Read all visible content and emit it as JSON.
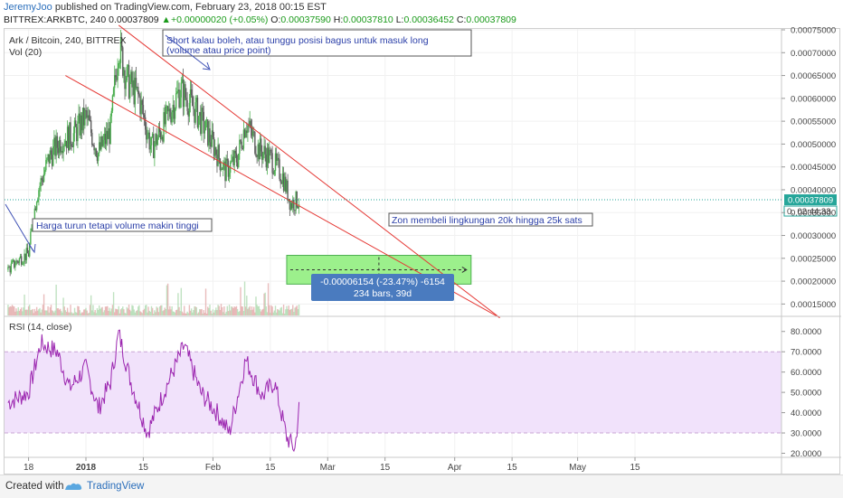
{
  "header": {
    "author": "JeremyJoo",
    "published_text": "published on TradingView.com, February 23, 2018 00:15 EST",
    "symbol": "BITTREX:ARKBTC, 240",
    "last": "0.00037809",
    "change": "+0.00000020 (+0.05%)",
    "o_label": "O:",
    "o": "0.00037590",
    "h_label": "H:",
    "h": "0.00037810",
    "l_label": "L:",
    "l": "0.00036452",
    "c_label": "C:",
    "c": "0.00037809"
  },
  "legend": {
    "title": "Ark / Bitcoin, 240, BITTREX",
    "vol": "Vol (20)",
    "rsi": "RSI (14, close)"
  },
  "annotations": {
    "note_top": "Short kalau boleh, atau tunggu posisi bagus untuk masuk long (volume atau price point)",
    "note_left": "Harga turun tetapi volume makin tinggi",
    "note_right": "Zon membeli lingkungan 20k hingga 25k sats",
    "measure_line1": "-0.00006154 (-23.47%) -6154",
    "measure_line2": "234 bars, 39d"
  },
  "price_tags": {
    "last_price": "0.00037809",
    "countdown": "02:44:33",
    "partial": "0."
  },
  "colors": {
    "candle_up": "#4caf50",
    "candle_down": "#5d5d5d",
    "trendline": "#e53935",
    "rsi_line": "#9c27b0",
    "rsi_band": "#f1e2fb",
    "last_price_tag": "#26a69a",
    "measure_box": "#4a7bbf",
    "buy_zone": "#9cf08c"
  },
  "footer": {
    "created_with": "Created with",
    "brand": "TradingView"
  },
  "chart_data": [
    {
      "type": "candlestick",
      "title": "Ark / Bitcoin, 240, BITTREX",
      "x_tick_labels": [
        "18",
        "2018",
        "15",
        "Feb",
        "15",
        "Mar",
        "15",
        "Apr",
        "15",
        "May",
        "15"
      ],
      "y_tick_labels": [
        "0.00015000",
        "0.00020000",
        "0.00025000",
        "0.00030000",
        "0.00035000",
        "0.00040000",
        "0.00045000",
        "0.00050000",
        "0.00055000",
        "0.00060000",
        "0.00065000",
        "0.00070000",
        "0.00075000"
      ],
      "ylim": [
        0.000125,
        0.000755
      ],
      "approx_close_path": [
        {
          "date": "2017-12-13",
          "close": 0.000225
        },
        {
          "date": "2017-12-16",
          "close": 0.00025
        },
        {
          "date": "2017-12-18",
          "close": 0.00026
        },
        {
          "date": "2017-12-20",
          "close": 0.00039
        },
        {
          "date": "2017-12-23",
          "close": 0.00047
        },
        {
          "date": "2017-12-26",
          "close": 0.00051
        },
        {
          "date": "2017-12-29",
          "close": 0.00052
        },
        {
          "date": "2018-01-01",
          "close": 0.00056
        },
        {
          "date": "2018-01-04",
          "close": 0.00048
        },
        {
          "date": "2018-01-07",
          "close": 0.00053
        },
        {
          "date": "2018-01-09",
          "close": 0.00072
        },
        {
          "date": "2018-01-11",
          "close": 0.00064
        },
        {
          "date": "2018-01-14",
          "close": 0.0006
        },
        {
          "date": "2018-01-17",
          "close": 0.00049
        },
        {
          "date": "2018-01-20",
          "close": 0.00054
        },
        {
          "date": "2018-01-24",
          "close": 0.00062
        },
        {
          "date": "2018-01-28",
          "close": 0.00057
        },
        {
          "date": "2018-02-01",
          "close": 0.0005
        },
        {
          "date": "2018-02-04",
          "close": 0.00044
        },
        {
          "date": "2018-02-07",
          "close": 0.00047
        },
        {
          "date": "2018-02-09",
          "close": 0.00055
        },
        {
          "date": "2018-02-12",
          "close": 0.00049
        },
        {
          "date": "2018-02-15",
          "close": 0.00047
        },
        {
          "date": "2018-02-18",
          "close": 0.00043
        },
        {
          "date": "2018-02-20",
          "close": 0.00037
        },
        {
          "date": "2018-02-22",
          "close": 0.000378
        }
      ],
      "last_price": 0.00037809,
      "buy_zone": {
        "low": 0.0002,
        "high": 0.00025,
        "from": "2018-02-19",
        "to": "2018-04-05"
      },
      "trendlines": [
        {
          "from": {
            "date": "2018-01-09",
            "price": 0.00076
          },
          "to": {
            "date": "2018-04-12",
            "price": 0.00012
          }
        },
        {
          "from": {
            "date": "2017-12-27",
            "price": 0.00065
          },
          "to": {
            "date": "2018-04-12",
            "price": 0.00012
          }
        }
      ]
    },
    {
      "type": "line",
      "title": "RSI (14, close)",
      "y_tick_labels": [
        "20.0000",
        "30.0000",
        "40.0000",
        "50.0000",
        "60.0000",
        "70.0000",
        "80.0000"
      ],
      "ylim": [
        18,
        83
      ],
      "bands": [
        30,
        70
      ],
      "approx_values": [
        {
          "date": "2017-12-13",
          "value": 45
        },
        {
          "date": "2017-12-18",
          "value": 50
        },
        {
          "date": "2017-12-21",
          "value": 74
        },
        {
          "date": "2017-12-25",
          "value": 70
        },
        {
          "date": "2017-12-28",
          "value": 52
        },
        {
          "date": "2018-01-01",
          "value": 62
        },
        {
          "date": "2018-01-04",
          "value": 42
        },
        {
          "date": "2018-01-07",
          "value": 55
        },
        {
          "date": "2018-01-09",
          "value": 79
        },
        {
          "date": "2018-01-12",
          "value": 55
        },
        {
          "date": "2018-01-16",
          "value": 30
        },
        {
          "date": "2018-01-20",
          "value": 50
        },
        {
          "date": "2018-01-25",
          "value": 73
        },
        {
          "date": "2018-01-29",
          "value": 50
        },
        {
          "date": "2018-02-02",
          "value": 40
        },
        {
          "date": "2018-02-05",
          "value": 30
        },
        {
          "date": "2018-02-09",
          "value": 66
        },
        {
          "date": "2018-02-13",
          "value": 48
        },
        {
          "date": "2018-02-16",
          "value": 55
        },
        {
          "date": "2018-02-19",
          "value": 28
        },
        {
          "date": "2018-02-21",
          "value": 22
        },
        {
          "date": "2018-02-22",
          "value": 42
        }
      ]
    }
  ]
}
